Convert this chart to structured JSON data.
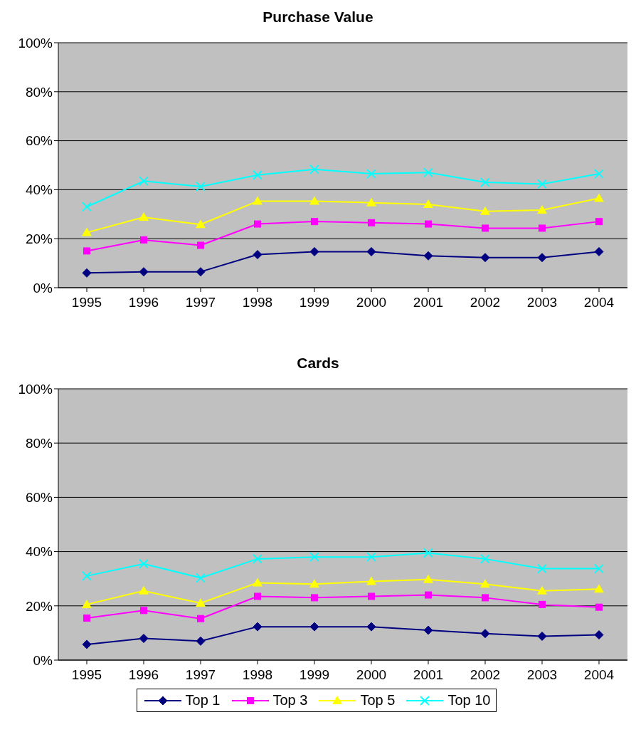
{
  "chart_data": [
    {
      "type": "line",
      "title": "Purchase Value",
      "categories": [
        "1995",
        "1996",
        "1997",
        "1998",
        "1999",
        "2000",
        "2001",
        "2002",
        "2003",
        "2004"
      ],
      "series": [
        {
          "color": "#000080",
          "marker": "diamond",
          "values": [
            6,
            6.5,
            6.5,
            13.5,
            14.7,
            14.7,
            13,
            12.3,
            12.3,
            14.7
          ]
        },
        {
          "color": "#ff00ff",
          "marker": "square",
          "values": [
            15,
            19.5,
            17.3,
            26,
            27,
            26.5,
            26,
            24.3,
            24.3,
            27
          ]
        },
        {
          "color": "#ffff00",
          "marker": "triangle",
          "values": [
            22.5,
            28.8,
            25.8,
            35.3,
            35.3,
            34.7,
            34,
            31.2,
            31.7,
            36.5
          ]
        },
        {
          "color": "#00ffff",
          "marker": "cross",
          "values": [
            33,
            43.5,
            41.3,
            46,
            48.3,
            46.5,
            47,
            43,
            42.3,
            46.5
          ]
        }
      ],
      "ylim": [
        0,
        100
      ],
      "yticks": [
        {
          "value": 0,
          "label": "0%"
        },
        {
          "value": 20,
          "label": "20%"
        },
        {
          "value": 40,
          "label": "40%"
        },
        {
          "value": 60,
          "label": "60%"
        },
        {
          "value": 80,
          "label": "80%"
        },
        {
          "value": 100,
          "label": "100%"
        }
      ],
      "grid": "y",
      "legend": false
    },
    {
      "type": "line",
      "title": "Cards",
      "categories": [
        "1995",
        "1996",
        "1997",
        "1998",
        "1999",
        "2000",
        "2001",
        "2002",
        "2003",
        "2004"
      ],
      "series": [
        {
          "name": "Top 1",
          "color": "#000080",
          "marker": "diamond",
          "values": [
            5.8,
            8,
            7,
            12.3,
            12.3,
            12.3,
            11,
            9.8,
            8.8,
            9.3
          ]
        },
        {
          "name": "Top 3",
          "color": "#ff00ff",
          "marker": "square",
          "values": [
            15.5,
            18.3,
            15.3,
            23.5,
            23,
            23.5,
            24,
            23,
            20.5,
            19.5
          ]
        },
        {
          "name": "Top 5",
          "color": "#ffff00",
          "marker": "triangle",
          "values": [
            20.5,
            25.5,
            21,
            28.5,
            28,
            29,
            29.7,
            28,
            25.5,
            26.2
          ]
        },
        {
          "name": "Top 10",
          "color": "#00ffff",
          "marker": "cross",
          "values": [
            31,
            35.5,
            30.3,
            37.3,
            38,
            38,
            39.5,
            37.3,
            33.7,
            33.7
          ]
        }
      ],
      "ylim": [
        0,
        100
      ],
      "yticks": [
        {
          "value": 0,
          "label": "0%"
        },
        {
          "value": 20,
          "label": "20%"
        },
        {
          "value": 40,
          "label": "40%"
        },
        {
          "value": 60,
          "label": "60%"
        },
        {
          "value": 80,
          "label": "80%"
        },
        {
          "value": 100,
          "label": "100%"
        }
      ],
      "grid": "y",
      "legend": "bottom"
    }
  ]
}
